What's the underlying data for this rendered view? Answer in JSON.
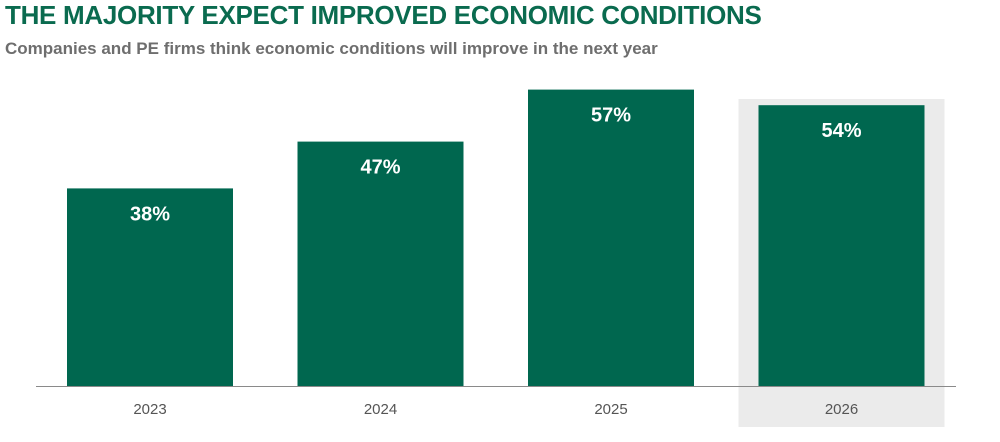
{
  "header": {
    "title": "THE MAJORITY EXPECT IMPROVED ECONOMIC CONDITIONS",
    "subtitle": "Companies and PE firms think economic conditions will improve in the next year"
  },
  "colors": {
    "title": "#0a6b4f",
    "bar": "#00674f",
    "highlight_background": "#ebebeb",
    "axis": "#8a8a8a",
    "data_label": "#ffffff",
    "tick_label": "#555555"
  },
  "chart_data": {
    "type": "bar",
    "categories": [
      "2023",
      "2024",
      "2025",
      "2026"
    ],
    "values": [
      38,
      47,
      57,
      54
    ],
    "data_labels": [
      "38%",
      "47%",
      "57%",
      "54%"
    ],
    "highlighted_category": "2026",
    "title": "THE MAJORITY EXPECT IMPROVED ECONOMIC CONDITIONS",
    "subtitle": "Companies and PE firms think economic conditions will improve in the next year",
    "xlabel": "",
    "ylabel": "",
    "ylim": [
      0,
      60
    ],
    "grid": false,
    "legend": "none"
  }
}
